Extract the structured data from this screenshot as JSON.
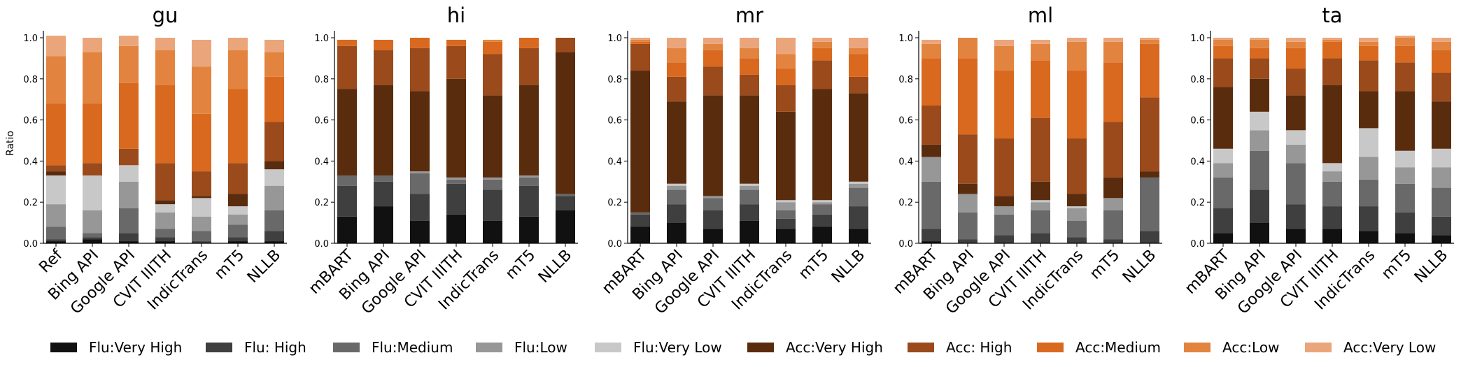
{
  "chart_data": {
    "type": "bar",
    "stacked": true,
    "ylabel": "Ratio",
    "ylim": [
      0,
      1
    ],
    "yticks": [
      "0.0",
      "0.2",
      "0.4",
      "0.6",
      "0.8",
      "1.0"
    ],
    "grid": false,
    "legend_position": "bottom",
    "categories_labels": [
      "Flu:Very High",
      "Flu: High",
      "Flu:Medium",
      "Flu:Low",
      "Flu:Very Low",
      "Acc:Very High",
      "Acc: High",
      "Acc:Medium",
      "Acc:Low",
      "Acc:Very Low"
    ],
    "colors": {
      "Flu:Very High": "#111111",
      "Flu: High": "#3f3f3f",
      "Flu:Medium": "#696969",
      "Flu:Low": "#979797",
      "Flu:Very Low": "#c8c8c8",
      "Acc:Very High": "#5a2c0e",
      "Acc: High": "#9a4a1b",
      "Acc:Medium": "#d9691f",
      "Acc:Low": "#e2843f",
      "Acc:Very Low": "#eba57b"
    },
    "panels": [
      {
        "title": "gu",
        "systems": [
          "Ref",
          "Bing API",
          "Google API",
          "CVIT IIITH",
          "IndicTrans",
          "mT5",
          "NLLB"
        ],
        "flu": [
          [
            0.01,
            0.02,
            0.01,
            0.01,
            0.0,
            0.01,
            0.01
          ],
          [
            0.01,
            0.01,
            0.04,
            0.02,
            0.01,
            0.02,
            0.05
          ],
          [
            0.06,
            0.02,
            0.12,
            0.04,
            0.05,
            0.06,
            0.1
          ],
          [
            0.11,
            0.11,
            0.13,
            0.08,
            0.07,
            0.05,
            0.12
          ],
          [
            0.14,
            0.17,
            0.08,
            0.04,
            0.09,
            0.04,
            0.08
          ]
        ],
        "acc": [
          [
            0.02,
            0.0,
            0.0,
            0.02,
            0.01,
            0.06,
            0.04
          ],
          [
            0.03,
            0.06,
            0.08,
            0.18,
            0.12,
            0.15,
            0.19
          ],
          [
            0.3,
            0.29,
            0.32,
            0.38,
            0.28,
            0.36,
            0.22
          ],
          [
            0.23,
            0.25,
            0.18,
            0.17,
            0.23,
            0.19,
            0.12
          ],
          [
            0.1,
            0.07,
            0.05,
            0.06,
            0.13,
            0.06,
            0.06
          ]
        ]
      },
      {
        "title": "hi",
        "systems": [
          "mBART",
          "Bing API",
          "Google API",
          "CVIT IIITH",
          "IndicTrans",
          "mT5",
          "NLLB"
        ],
        "flu": [
          [
            0.13,
            0.18,
            0.11,
            0.14,
            0.11,
            0.13,
            0.16
          ],
          [
            0.15,
            0.12,
            0.13,
            0.15,
            0.15,
            0.15,
            0.07
          ],
          [
            0.05,
            0.03,
            0.1,
            0.02,
            0.05,
            0.04,
            0.01
          ],
          [
            0.0,
            0.0,
            0.01,
            0.01,
            0.01,
            0.01,
            0.0
          ],
          [
            0.0,
            0.0,
            0.0,
            0.0,
            0.0,
            0.0,
            0.0
          ]
        ],
        "acc": [
          [
            0.42,
            0.44,
            0.39,
            0.48,
            0.4,
            0.44,
            0.69
          ],
          [
            0.21,
            0.17,
            0.21,
            0.16,
            0.2,
            0.18,
            0.07
          ],
          [
            0.03,
            0.05,
            0.05,
            0.03,
            0.06,
            0.05,
            0.0
          ],
          [
            0.0,
            0.0,
            0.0,
            0.0,
            0.01,
            0.0,
            0.0
          ],
          [
            0.0,
            0.0,
            0.0,
            0.0,
            0.0,
            0.0,
            0.0
          ]
        ]
      },
      {
        "title": "mr",
        "systems": [
          "mBART",
          "Bing API",
          "Google API",
          "CVIT IIITH",
          "IndicTrans",
          "mT5",
          "NLLB"
        ],
        "flu": [
          [
            0.08,
            0.1,
            0.07,
            0.11,
            0.07,
            0.08,
            0.07
          ],
          [
            0.06,
            0.09,
            0.09,
            0.08,
            0.05,
            0.06,
            0.11
          ],
          [
            0.01,
            0.07,
            0.06,
            0.07,
            0.04,
            0.05,
            0.09
          ],
          [
            0.0,
            0.02,
            0.01,
            0.02,
            0.04,
            0.01,
            0.02
          ],
          [
            0.0,
            0.01,
            0.0,
            0.01,
            0.01,
            0.01,
            0.01
          ]
        ],
        "acc": [
          [
            0.69,
            0.4,
            0.49,
            0.43,
            0.43,
            0.54,
            0.43
          ],
          [
            0.13,
            0.12,
            0.14,
            0.1,
            0.13,
            0.14,
            0.08
          ],
          [
            0.01,
            0.07,
            0.08,
            0.08,
            0.08,
            0.06,
            0.11
          ],
          [
            0.01,
            0.07,
            0.03,
            0.05,
            0.07,
            0.03,
            0.03
          ],
          [
            0.01,
            0.05,
            0.03,
            0.05,
            0.08,
            0.02,
            0.05
          ]
        ]
      },
      {
        "title": "ml",
        "systems": [
          "mBART",
          "Bing API",
          "Google API",
          "CVIT IIITH",
          "IndicTrans",
          "mT5",
          "NLLB"
        ],
        "flu": [
          [
            0.01,
            0.0,
            0.0,
            0.0,
            0.0,
            0.0,
            0.0
          ],
          [
            0.06,
            0.02,
            0.04,
            0.05,
            0.03,
            0.02,
            0.06
          ],
          [
            0.23,
            0.13,
            0.1,
            0.11,
            0.08,
            0.14,
            0.26
          ],
          [
            0.12,
            0.09,
            0.04,
            0.04,
            0.06,
            0.06,
            0.0
          ],
          [
            0.0,
            0.0,
            0.0,
            0.01,
            0.01,
            0.0,
            0.0
          ]
        ],
        "acc": [
          [
            0.06,
            0.05,
            0.05,
            0.09,
            0.06,
            0.1,
            0.03
          ],
          [
            0.19,
            0.24,
            0.28,
            0.31,
            0.27,
            0.27,
            0.36
          ],
          [
            0.23,
            0.37,
            0.33,
            0.28,
            0.33,
            0.29,
            0.26
          ],
          [
            0.07,
            0.1,
            0.12,
            0.08,
            0.14,
            0.1,
            0.02
          ],
          [
            0.02,
            0.0,
            0.03,
            0.02,
            0.02,
            0.02,
            0.01
          ]
        ]
      },
      {
        "title": "ta",
        "systems": [
          "mBART",
          "Bing API",
          "Google API",
          "CVIT IIITH",
          "IndicTrans",
          "mT5",
          "NLLB"
        ],
        "flu": [
          [
            0.05,
            0.1,
            0.07,
            0.07,
            0.06,
            0.05,
            0.04
          ],
          [
            0.12,
            0.16,
            0.12,
            0.11,
            0.12,
            0.1,
            0.09
          ],
          [
            0.15,
            0.19,
            0.2,
            0.12,
            0.13,
            0.14,
            0.14
          ],
          [
            0.07,
            0.1,
            0.09,
            0.05,
            0.11,
            0.08,
            0.1
          ],
          [
            0.07,
            0.09,
            0.07,
            0.04,
            0.14,
            0.08,
            0.09
          ]
        ],
        "acc": [
          [
            0.3,
            0.16,
            0.17,
            0.38,
            0.18,
            0.29,
            0.23
          ],
          [
            0.14,
            0.1,
            0.13,
            0.13,
            0.15,
            0.14,
            0.14
          ],
          [
            0.06,
            0.05,
            0.1,
            0.08,
            0.07,
            0.08,
            0.11
          ],
          [
            0.03,
            0.04,
            0.03,
            0.01,
            0.02,
            0.04,
            0.04
          ],
          [
            0.01,
            0.01,
            0.02,
            0.01,
            0.02,
            0.01,
            0.02
          ]
        ]
      }
    ]
  }
}
